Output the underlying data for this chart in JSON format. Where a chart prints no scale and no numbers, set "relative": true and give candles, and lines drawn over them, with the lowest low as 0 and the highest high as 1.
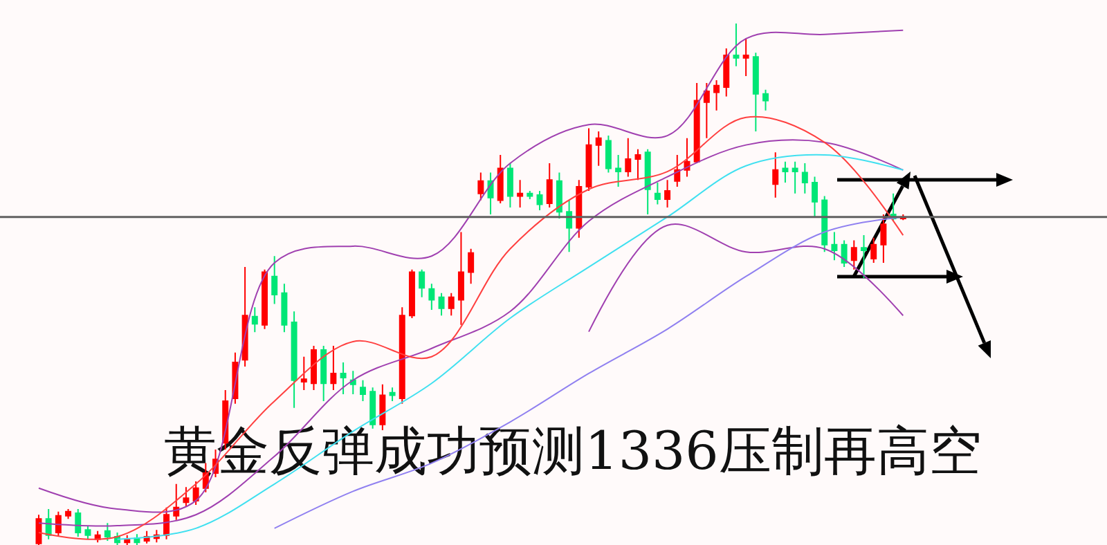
{
  "chart_data": {
    "type": "candlestick",
    "title": "黄金反弹成功预测1336压制再高空",
    "relative": true,
    "categories": [
      null,
      null,
      null,
      null,
      null,
      null,
      null,
      null,
      null,
      null,
      null,
      null,
      null,
      null,
      null,
      null,
      null,
      null,
      null,
      null,
      null,
      null,
      null,
      null,
      null,
      null,
      null,
      null,
      null,
      null,
      null,
      null,
      null,
      null,
      null,
      null,
      null,
      null,
      null,
      null,
      null,
      null,
      null,
      null,
      null,
      null,
      null,
      null,
      null,
      null,
      null,
      null,
      null,
      null,
      null,
      null,
      null,
      null,
      null,
      null,
      null,
      null,
      null,
      null,
      null,
      null,
      null,
      null,
      null,
      null,
      null,
      null,
      null,
      null,
      null,
      null,
      null,
      null,
      null,
      null,
      null,
      null,
      null,
      null,
      null,
      null,
      null,
      null,
      null
    ],
    "ohlc": [
      [
        0.003,
        0.058,
        0,
        0.05
      ],
      [
        0.05,
        0.069,
        0.011,
        0.019
      ],
      [
        0.024,
        0.064,
        0.016,
        0.056
      ],
      [
        0.056,
        0.069,
        0.05,
        0.064
      ],
      [
        0.061,
        0.069,
        0.016,
        0.024
      ],
      [
        0.029,
        0.037,
        0.011,
        0.019
      ],
      [
        0.011,
        0.027,
        0.005,
        0.019
      ],
      [
        0.027,
        0.042,
        0.008,
        0.016
      ],
      [
        0.016,
        0.024,
        0,
        0.005
      ],
      [
        0.005,
        0.019,
        0,
        0.011
      ],
      [
        0.013,
        0.021,
        0,
        0.005
      ],
      [
        0.008,
        0.027,
        0.003,
        0.016
      ],
      [
        0.013,
        0.029,
        0.005,
        0.019
      ],
      [
        0.019,
        0.072,
        0.011,
        0.058
      ],
      [
        0.056,
        0.117,
        0.048,
        0.072
      ],
      [
        0.082,
        0.111,
        0.074,
        0.09
      ],
      [
        0.085,
        0.122,
        0.077,
        0.109
      ],
      [
        0.109,
        0.157,
        0.101,
        0.138
      ],
      [
        0.138,
        0.183,
        0.13,
        0.164
      ],
      [
        0.196,
        0.297,
        0.183,
        0.276
      ],
      [
        0.281,
        0.369,
        0.271,
        0.35
      ],
      [
        0.355,
        0.533,
        0.342,
        0.44
      ],
      [
        0.438,
        0.456,
        0.408,
        0.424
      ],
      [
        0.422,
        0.528,
        0.414,
        0.523
      ],
      [
        0.515,
        0.554,
        0.462,
        0.48
      ],
      [
        0.483,
        0.501,
        0.408,
        0.422
      ],
      [
        0.427,
        0.448,
        0.263,
        0.316
      ],
      [
        0.313,
        0.361,
        0.297,
        0.318
      ],
      [
        0.31,
        0.382,
        0.297,
        0.374
      ],
      [
        0.374,
        0.382,
        0.276,
        0.31
      ],
      [
        0.31,
        0.382,
        0.297,
        0.329
      ],
      [
        0.329,
        0.35,
        0.289,
        0.321
      ],
      [
        0.316,
        0.334,
        0.289,
        0.308
      ],
      [
        0.302,
        0.316,
        0.276,
        0.289
      ],
      [
        0.294,
        0.302,
        0.223,
        0.231
      ],
      [
        0.231,
        0.308,
        0.22,
        0.287
      ],
      [
        0.292,
        0.302,
        0.276,
        0.287
      ],
      [
        0.281,
        0.456,
        0.271,
        0.44
      ],
      [
        0.44,
        0.528,
        0.435,
        0.523
      ],
      [
        0.523,
        0.528,
        0.475,
        0.493
      ],
      [
        0.491,
        0.501,
        0.451,
        0.47
      ],
      [
        0.475,
        0.483,
        0.44,
        0.454
      ],
      [
        0.454,
        0.483,
        0.44,
        0.475
      ],
      [
        0.47,
        0.6,
        0.422,
        0.523
      ],
      [
        0.523,
        0.568,
        0.501,
        0.56
      ],
      [
        0.674,
        0.714,
        0.661,
        0.698
      ],
      [
        0.698,
        0.714,
        0.634,
        0.666
      ],
      [
        0.661,
        0.748,
        0.655,
        0.722
      ],
      [
        0.722,
        0.732,
        0.647,
        0.669
      ],
      [
        0.669,
        0.7,
        0.647,
        0.674
      ],
      [
        0.674,
        0.679,
        0.663,
        0.669
      ],
      [
        0.671,
        0.679,
        0.642,
        0.653
      ],
      [
        0.655,
        0.732,
        0.647,
        0.7
      ],
      [
        0.698,
        0.714,
        0.626,
        0.639
      ],
      [
        0.639,
        0.661,
        0.562,
        0.608
      ],
      [
        0.608,
        0.7,
        0.589,
        0.687
      ],
      [
        0.687,
        0.799,
        0.679,
        0.767
      ],
      [
        0.767,
        0.793,
        0.727,
        0.78
      ],
      [
        0.775,
        0.785,
        0.714,
        0.722
      ],
      [
        0.722,
        0.748,
        0.687,
        0.716
      ],
      [
        0.716,
        0.78,
        0.706,
        0.74
      ],
      [
        0.74,
        0.759,
        0.7,
        0.748
      ],
      [
        0.753,
        0.759,
        0.634,
        0.682
      ],
      [
        0.674,
        0.695,
        0.653,
        0.663
      ],
      [
        0.663,
        0.7,
        0.647,
        0.679
      ],
      [
        0.698,
        0.748,
        0.687,
        0.719
      ],
      [
        0.719,
        0.78,
        0.706,
        0.735
      ],
      [
        0.735,
        0.886,
        0.732,
        0.852
      ],
      [
        0.849,
        0.886,
        0.78,
        0.87
      ],
      [
        0.868,
        0.891,
        0.833,
        0.881
      ],
      [
        0.878,
        0.952,
        0.86,
        0.939
      ],
      [
        0.939,
        1,
        0.918,
        0.934
      ],
      [
        0.934,
        0.971,
        0.899,
        0.939
      ],
      [
        0.936,
        0.944,
        0.793,
        0.865
      ],
      [
        0.865,
        0.873,
        0.833,
        0.852
      ],
      [
        0.692,
        0.753,
        0.666,
        0.719
      ],
      [
        0.722,
        0.735,
        0.695,
        0.716
      ],
      [
        0.722,
        0.735,
        0.674,
        0.716
      ],
      [
        0.714,
        0.732,
        0.674,
        0.695
      ],
      [
        0.695,
        0.706,
        0.629,
        0.658
      ],
      [
        0.661,
        0.669,
        0.562,
        0.576
      ],
      [
        0.576,
        0.6,
        0.546,
        0.565
      ],
      [
        0.576,
        0.584,
        0.533,
        0.541
      ],
      [
        0.546,
        0.584,
        0.528,
        0.57
      ],
      [
        0.57,
        0.594,
        0.512,
        0.565
      ],
      [
        0.549,
        0.589,
        0.541,
        0.576
      ],
      [
        0.576,
        0.634,
        0.541,
        0.615
      ],
      [
        0.634,
        0.674,
        0.621,
        0.626
      ],
      [
        0.626,
        0.634,
        0.623,
        0.629
      ]
    ],
    "colors": [
      "#ff0000",
      "#00e676",
      "#ff0000",
      "#ff0000",
      "#00e676",
      "#00e676",
      "#ff0000",
      "#00e676",
      "#00e676",
      "#ff0000",
      "#00e676",
      "#ff0000",
      "#ff0000",
      "#ff0000",
      "#ff0000",
      "#ff0000",
      "#ff0000",
      "#ff0000",
      "#ff0000",
      "#ff0000",
      "#ff0000",
      "#ff0000",
      "#00e676",
      "#ff0000",
      "#00e676",
      "#00e676",
      "#00e676",
      "#ff0000",
      "#ff0000",
      "#00e676",
      "#ff0000",
      "#00e676",
      "#00e676",
      "#00e676",
      "#00e676",
      "#ff0000",
      "#00e676",
      "#ff0000",
      "#ff0000",
      "#00e676",
      "#00e676",
      "#00e676",
      "#ff0000",
      "#ff0000",
      "#ff0000",
      "#ff0000",
      "#00e676",
      "#ff0000",
      "#00e676",
      "#ff0000",
      "#00e676",
      "#00e676",
      "#ff0000",
      "#00e676",
      "#00e676",
      "#ff0000",
      "#ff0000",
      "#ff0000",
      "#00e676",
      "#00e676",
      "#ff0000",
      "#ff0000",
      "#00e676",
      "#00e676",
      "#ff0000",
      "#ff0000",
      "#ff0000",
      "#ff0000",
      "#ff0000",
      "#ff0000",
      "#ff0000",
      "#00e676",
      "#ff0000",
      "#00e676",
      "#00e676",
      "#ff0000",
      "#00e676",
      "#00e676",
      "#00e676",
      "#00e676",
      "#00e676",
      "#00e676",
      "#00e676",
      "#ff0000",
      "#00e676",
      "#ff0000",
      "#ff0000",
      "#00e676",
      "#ff0000"
    ],
    "series": [
      {
        "type": "line",
        "color": "#a040b0",
        "values": [
          0.109,
          null,
          null,
          null,
          null,
          null,
          null,
          null,
          0.069,
          null,
          null,
          null,
          null,
          null,
          null,
          null,
          0.085,
          null,
          null,
          null,
          null,
          null,
          null,
          null,
          0.541,
          null,
          null,
          null,
          null,
          null,
          null,
          null,
          0.573,
          null,
          null,
          null,
          null,
          null,
          null,
          null,
          0.554,
          null,
          null,
          null,
          null,
          null,
          null,
          null,
          0.732,
          null,
          null,
          null,
          null,
          null,
          null,
          null,
          0.806,
          null,
          null,
          null,
          null,
          null,
          null,
          null,
          0.785,
          null,
          null,
          null,
          null,
          null,
          null,
          null,
          0.971,
          null,
          null,
          null,
          null,
          null,
          null,
          null,
          0.979,
          null,
          null,
          null,
          null,
          null,
          null,
          null,
          0.987
        ]
      },
      {
        "type": "line",
        "color": "#a040b0",
        "values": [
          0.042,
          null,
          null,
          null,
          null,
          null,
          null,
          null,
          0.037,
          null,
          null,
          null,
          null,
          null,
          null,
          null,
          0.058,
          null,
          null,
          null,
          null,
          null,
          null,
          null,
          0.17,
          null,
          null,
          null,
          null,
          null,
          null,
          null,
          0.316,
          null,
          null,
          null,
          null,
          null,
          null,
          null,
          0.377,
          null,
          null,
          null,
          null,
          null,
          null,
          null,
          0.448,
          null,
          null,
          null,
          null,
          null,
          null,
          null,
          0.621,
          null,
          null,
          null,
          null,
          null,
          null,
          null,
          0.706,
          null,
          null,
          null,
          null,
          null,
          null,
          null,
          0.767,
          null,
          null,
          null,
          null,
          null,
          null,
          null,
          0.772,
          null,
          null,
          null,
          null,
          null,
          null,
          null,
          0.719
        ]
      },
      {
        "type": "line",
        "color": "#a040b0",
        "values": [
          null,
          null,
          null,
          null,
          null,
          null,
          null,
          null,
          null,
          null,
          null,
          null,
          null,
          null,
          null,
          null,
          null,
          null,
          null,
          null,
          null,
          null,
          null,
          null,
          null,
          null,
          null,
          null,
          null,
          null,
          null,
          null,
          null,
          null,
          null,
          null,
          null,
          null,
          null,
          null,
          null,
          null,
          null,
          null,
          null,
          null,
          null,
          null,
          null,
          null,
          null,
          null,
          null,
          null,
          null,
          null,
          0.409,
          null,
          null,
          null,
          null,
          null,
          null,
          null,
          0.613,
          null,
          null,
          null,
          null,
          null,
          null,
          null,
          0.562,
          null,
          null,
          null,
          null,
          null,
          null,
          null,
          0.568,
          null,
          null,
          null,
          null,
          null,
          null,
          null,
          0.44
        ]
      },
      {
        "type": "line",
        "color": "#ff4040",
        "values": [
          0.024,
          null,
          null,
          null,
          null,
          null,
          null,
          null,
          0.016,
          null,
          null,
          null,
          null,
          null,
          null,
          null,
          0.117,
          null,
          null,
          null,
          null,
          null,
          null,
          null,
          0.276,
          null,
          null,
          null,
          null,
          null,
          null,
          null,
          0.39,
          null,
          null,
          null,
          null,
          null,
          null,
          null,
          0.361,
          null,
          null,
          null,
          null,
          null,
          null,
          null,
          0.568,
          null,
          null,
          null,
          null,
          null,
          null,
          null,
          0.682,
          null,
          null,
          null,
          null,
          null,
          null,
          null,
          0.716,
          null,
          null,
          null,
          null,
          null,
          null,
          null,
          0.82,
          null,
          null,
          null,
          null,
          null,
          null,
          null,
          0.772,
          null,
          null,
          null,
          null,
          null,
          null,
          null,
          0.594
        ]
      },
      {
        "type": "line",
        "color": "#40e0f0",
        "values": [
          null,
          null,
          null,
          null,
          null,
          null,
          null,
          null,
          0.011,
          null,
          null,
          null,
          null,
          null,
          null,
          null,
          0.032,
          null,
          null,
          null,
          null,
          null,
          null,
          null,
          0.117,
          null,
          null,
          null,
          null,
          null,
          null,
          null,
          0.218,
          null,
          null,
          null,
          null,
          null,
          null,
          null,
          0.31,
          null,
          null,
          null,
          null,
          null,
          null,
          null,
          0.435,
          null,
          null,
          null,
          null,
          null,
          null,
          null,
          0.533,
          null,
          null,
          null,
          null,
          null,
          null,
          null,
          0.629,
          null,
          null,
          null,
          null,
          null,
          null,
          null,
          0.727,
          null,
          null,
          null,
          null,
          null,
          null,
          null,
          0.748,
          null,
          null,
          null,
          null,
          null,
          null,
          null,
          0.719
        ]
      },
      {
        "type": "line",
        "color": "#9080f0",
        "values": [
          null,
          null,
          null,
          null,
          null,
          null,
          null,
          null,
          null,
          null,
          null,
          null,
          null,
          null,
          null,
          null,
          null,
          null,
          null,
          null,
          null,
          null,
          null,
          null,
          0.032,
          null,
          null,
          null,
          null,
          null,
          null,
          null,
          0.103,
          null,
          null,
          null,
          null,
          null,
          null,
          null,
          0.157,
          null,
          null,
          null,
          null,
          null,
          null,
          null,
          0.236,
          null,
          null,
          null,
          null,
          null,
          null,
          null,
          0.329,
          null,
          null,
          null,
          null,
          null,
          null,
          null,
          0.414,
          null,
          null,
          null,
          null,
          null,
          null,
          null,
          0.515,
          null,
          null,
          null,
          null,
          null,
          null,
          null,
          0.6,
          null,
          null,
          null,
          null,
          null,
          null,
          null,
          0.629
        ]
      }
    ],
    "ref_lines": [
      {
        "axis": "y",
        "value": 0.629,
        "color": "#606060"
      }
    ]
  }
}
